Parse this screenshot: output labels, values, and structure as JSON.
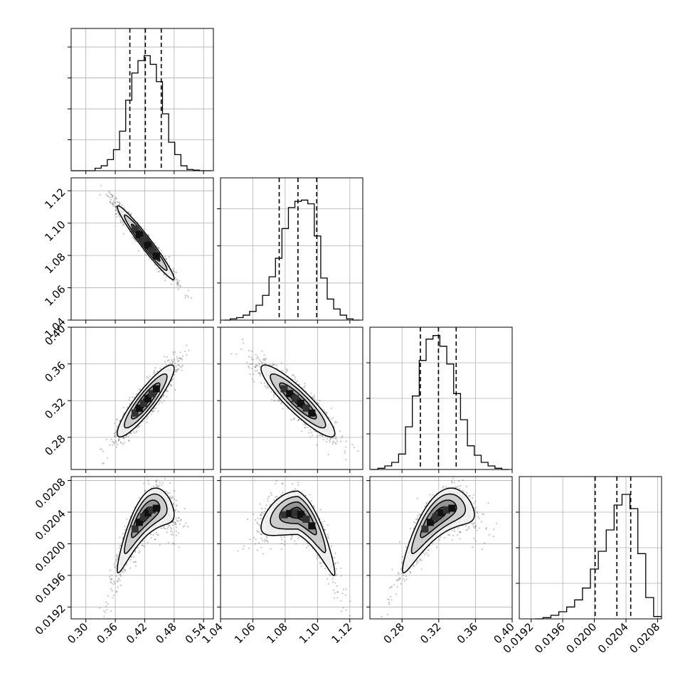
{
  "chart_data": {
    "type": "corner",
    "parameters": [
      {
        "index": 0,
        "range": [
          0.27,
          0.56
        ],
        "ticks": [
          "0.30",
          "0.36",
          "0.42",
          "0.48",
          "0.54"
        ],
        "quantiles": [
          0.3897,
          0.4213,
          0.4537
        ],
        "mean": 0.422,
        "sd": 0.029,
        "hist_ylim": [
          0,
          1.15
        ],
        "hist_ticks": [
          0.25,
          0.5,
          0.75,
          1.0
        ],
        "hist_centers": [
          0.275,
          0.2875,
          0.3,
          0.3125,
          0.325,
          0.3375,
          0.35,
          0.3625,
          0.375,
          0.3875,
          0.4,
          0.4125,
          0.425,
          0.4375,
          0.45,
          0.4625,
          0.475,
          0.4875,
          0.5,
          0.5125,
          0.525,
          0.5375,
          0.55
        ],
        "hist_values": [
          0.0,
          0.0,
          0.0,
          0.0,
          0.02,
          0.04,
          0.09,
          0.17,
          0.32,
          0.57,
          0.79,
          0.89,
          0.93,
          0.86,
          0.72,
          0.46,
          0.23,
          0.13,
          0.04,
          0.01,
          0.005,
          0.0,
          0.0
        ]
      },
      {
        "index": 1,
        "range": [
          1.04,
          1.128
        ],
        "ticks": [
          "1.04",
          "1.06",
          "1.08",
          "1.10",
          "1.12"
        ],
        "quantiles": [
          1.0763,
          1.0879,
          1.0995
        ],
        "mean": 1.0879,
        "sd": 0.0114,
        "hist_ylim": [
          0,
          1.15
        ],
        "hist_ticks": [
          0.3,
          0.6,
          0.9
        ],
        "hist_centers": [
          1.044,
          1.048,
          1.052,
          1.056,
          1.06,
          1.064,
          1.068,
          1.072,
          1.076,
          1.08,
          1.084,
          1.088,
          1.092,
          1.096,
          1.1,
          1.104,
          1.108,
          1.112,
          1.116,
          1.12,
          1.124
        ],
        "hist_values": [
          0.0,
          0.01,
          0.02,
          0.04,
          0.07,
          0.12,
          0.2,
          0.35,
          0.5,
          0.74,
          0.91,
          0.96,
          0.97,
          0.94,
          0.68,
          0.34,
          0.17,
          0.09,
          0.04,
          0.01,
          0.0
        ]
      },
      {
        "index": 2,
        "range": [
          0.245,
          0.4
        ],
        "ticks": [
          "0.28",
          "0.32",
          "0.36",
          "0.40"
        ],
        "quantiles": [
          0.3,
          0.3197,
          0.339
        ],
        "mean": 0.3197,
        "sd": 0.0196,
        "hist_ylim": [
          0,
          1.2
        ],
        "hist_ticks": [
          0.3,
          0.6,
          0.9
        ],
        "hist_centers": [
          0.25,
          0.2575,
          0.265,
          0.2725,
          0.28,
          0.2875,
          0.295,
          0.3025,
          0.31,
          0.3175,
          0.325,
          0.3325,
          0.34,
          0.3475,
          0.355,
          0.3625,
          0.37,
          0.3775,
          0.385,
          0.3925
        ],
        "hist_values": [
          0.0,
          0.01,
          0.03,
          0.06,
          0.13,
          0.36,
          0.62,
          0.92,
          1.1,
          1.13,
          1.04,
          0.89,
          0.64,
          0.42,
          0.2,
          0.12,
          0.06,
          0.03,
          0.01,
          0.0
        ]
      },
      {
        "index": 3,
        "range": [
          0.01905,
          0.02085
        ],
        "ticks": [
          "0.0192",
          "0.0196",
          "0.0200",
          "0.0204",
          "0.0208"
        ],
        "quantiles": [
          0.02001,
          0.020285,
          0.02046
        ],
        "mean": 0.02028,
        "sd": 0.00025,
        "hist_ylim": [
          0,
          1.2
        ],
        "hist_ticks": [
          0.3,
          0.6,
          0.9
        ],
        "hist_centers": [
          0.0193,
          0.0194,
          0.0195,
          0.0196,
          0.0197,
          0.0198,
          0.0199,
          0.02,
          0.0201,
          0.0202,
          0.0203,
          0.0204,
          0.0205,
          0.0206,
          0.0207,
          0.0208
        ],
        "hist_values": [
          0.0,
          0.01,
          0.03,
          0.06,
          0.1,
          0.16,
          0.26,
          0.42,
          0.57,
          0.75,
          0.96,
          1.05,
          0.93,
          0.55,
          0.18,
          0.02
        ]
      }
    ],
    "pairs": [
      {
        "row": 1,
        "col": 0,
        "rho": -0.97
      },
      {
        "row": 2,
        "col": 0,
        "rho": 0.9
      },
      {
        "row": 2,
        "col": 1,
        "rho": -0.9
      },
      {
        "row": 3,
        "col": 0,
        "rho": 0.7,
        "curved": true
      },
      {
        "row": 3,
        "col": 1,
        "rho": -0.5,
        "curved": true
      },
      {
        "row": 3,
        "col": 2,
        "rho": 0.7,
        "curved": true
      }
    ],
    "grid": true,
    "contour_levels_sigma": [
      0.5,
      1.0,
      1.5,
      2.0
    ]
  }
}
